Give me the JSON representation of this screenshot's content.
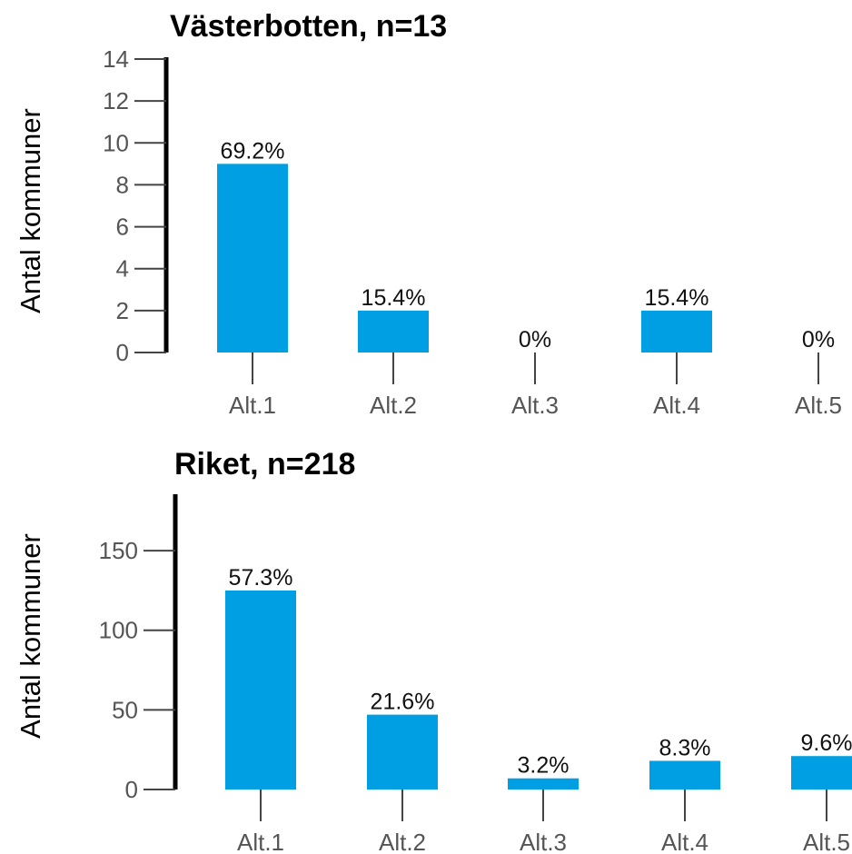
{
  "chart_data": [
    {
      "type": "bar",
      "title": "Västerbotten, n=13",
      "xlabel": "",
      "ylabel": "Antal kommuner",
      "categories": [
        "Alt.1",
        "Alt.2",
        "Alt.3",
        "Alt.4",
        "Alt.5"
      ],
      "values": [
        9,
        2,
        0,
        2,
        0
      ],
      "data_labels": [
        "69.2%",
        "15.4%",
        "0%",
        "15.4%",
        "0%"
      ],
      "ylim": [
        0,
        14
      ],
      "yticks": [
        0,
        2,
        4,
        6,
        8,
        10,
        12,
        14
      ],
      "bar_color": "#009fe3",
      "grid": false
    },
    {
      "type": "bar",
      "title": "Riket, n=218",
      "xlabel": "",
      "ylabel": "Antal kommuner",
      "categories": [
        "Alt.1",
        "Alt.2",
        "Alt.3",
        "Alt.4",
        "Alt.5"
      ],
      "values": [
        125,
        47,
        7,
        18,
        21
      ],
      "data_labels": [
        "57.3%",
        "21.6%",
        "3.2%",
        "8.3%",
        "9.6%"
      ],
      "ylim": [
        0,
        190
      ],
      "yticks": [
        0,
        50,
        100,
        150
      ],
      "bar_color": "#009fe3",
      "grid": false
    }
  ]
}
